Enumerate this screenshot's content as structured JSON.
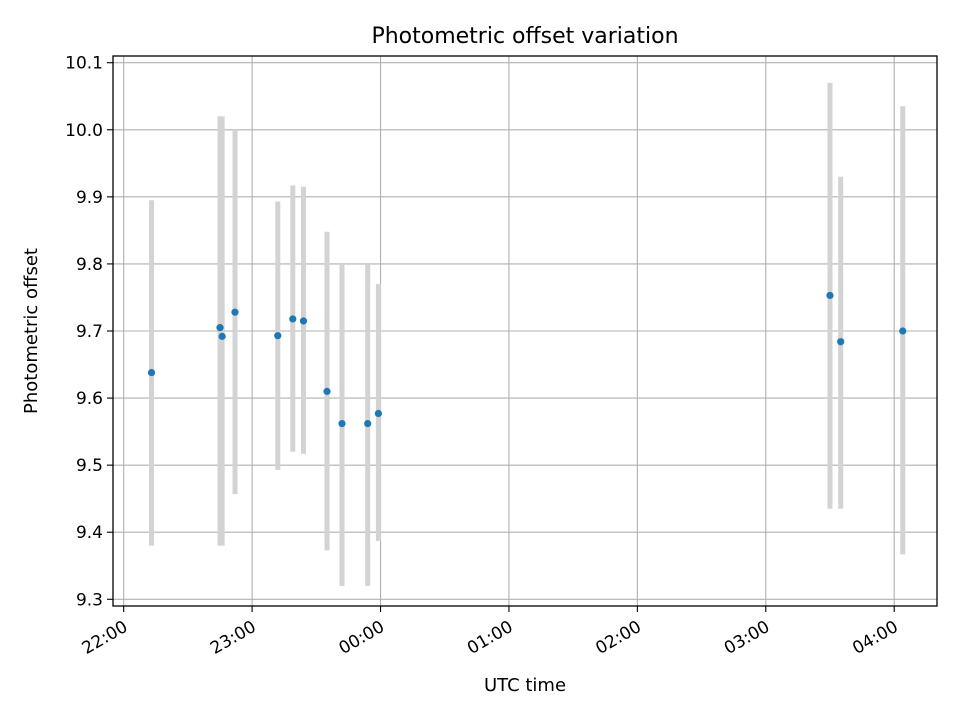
{
  "chart_data": {
    "type": "scatter",
    "title": "Photometric offset variation",
    "xlabel": "UTC time",
    "ylabel": "Photometric offset",
    "xlim": [
      "21:55",
      "04:20"
    ],
    "ylim": [
      9.29,
      10.11
    ],
    "xticks": [
      "22:00",
      "23:00",
      "00:00",
      "01:00",
      "02:00",
      "03:00",
      "04:00"
    ],
    "yticks": [
      "9.3",
      "9.4",
      "9.5",
      "9.6",
      "9.7",
      "9.8",
      "9.9",
      "10.0",
      "10.1"
    ],
    "grid": true,
    "marker_color": "#1f77b4",
    "errorbar_color": "#d3d3d3",
    "points": [
      {
        "x": "22:13",
        "y": 9.638,
        "err_low": 9.38,
        "err_high": 9.895
      },
      {
        "x": "22:45",
        "y": 9.705,
        "err_low": 9.38,
        "err_high": 10.02
      },
      {
        "x": "22:46",
        "y": 9.692,
        "err_low": 9.38,
        "err_high": 10.02
      },
      {
        "x": "22:52",
        "y": 9.728,
        "err_low": 9.457,
        "err_high": 10.0
      },
      {
        "x": "23:12",
        "y": 9.693,
        "err_low": 9.493,
        "err_high": 9.893
      },
      {
        "x": "23:19",
        "y": 9.718,
        "err_low": 9.52,
        "err_high": 9.917
      },
      {
        "x": "23:24",
        "y": 9.715,
        "err_low": 9.517,
        "err_high": 9.915
      },
      {
        "x": "23:35",
        "y": 9.61,
        "err_low": 9.373,
        "err_high": 9.848
      },
      {
        "x": "23:42",
        "y": 9.562,
        "err_low": 9.32,
        "err_high": 9.8
      },
      {
        "x": "23:54",
        "y": 9.562,
        "err_low": 9.32,
        "err_high": 9.8
      },
      {
        "x": "23:59",
        "y": 9.577,
        "err_low": 9.387,
        "err_high": 9.77
      },
      {
        "x": "03:30",
        "y": 9.753,
        "err_low": 9.435,
        "err_high": 10.07
      },
      {
        "x": "03:35",
        "y": 9.684,
        "err_low": 9.435,
        "err_high": 9.93
      },
      {
        "x": "04:04",
        "y": 9.7,
        "err_low": 9.367,
        "err_high": 10.035
      }
    ]
  }
}
